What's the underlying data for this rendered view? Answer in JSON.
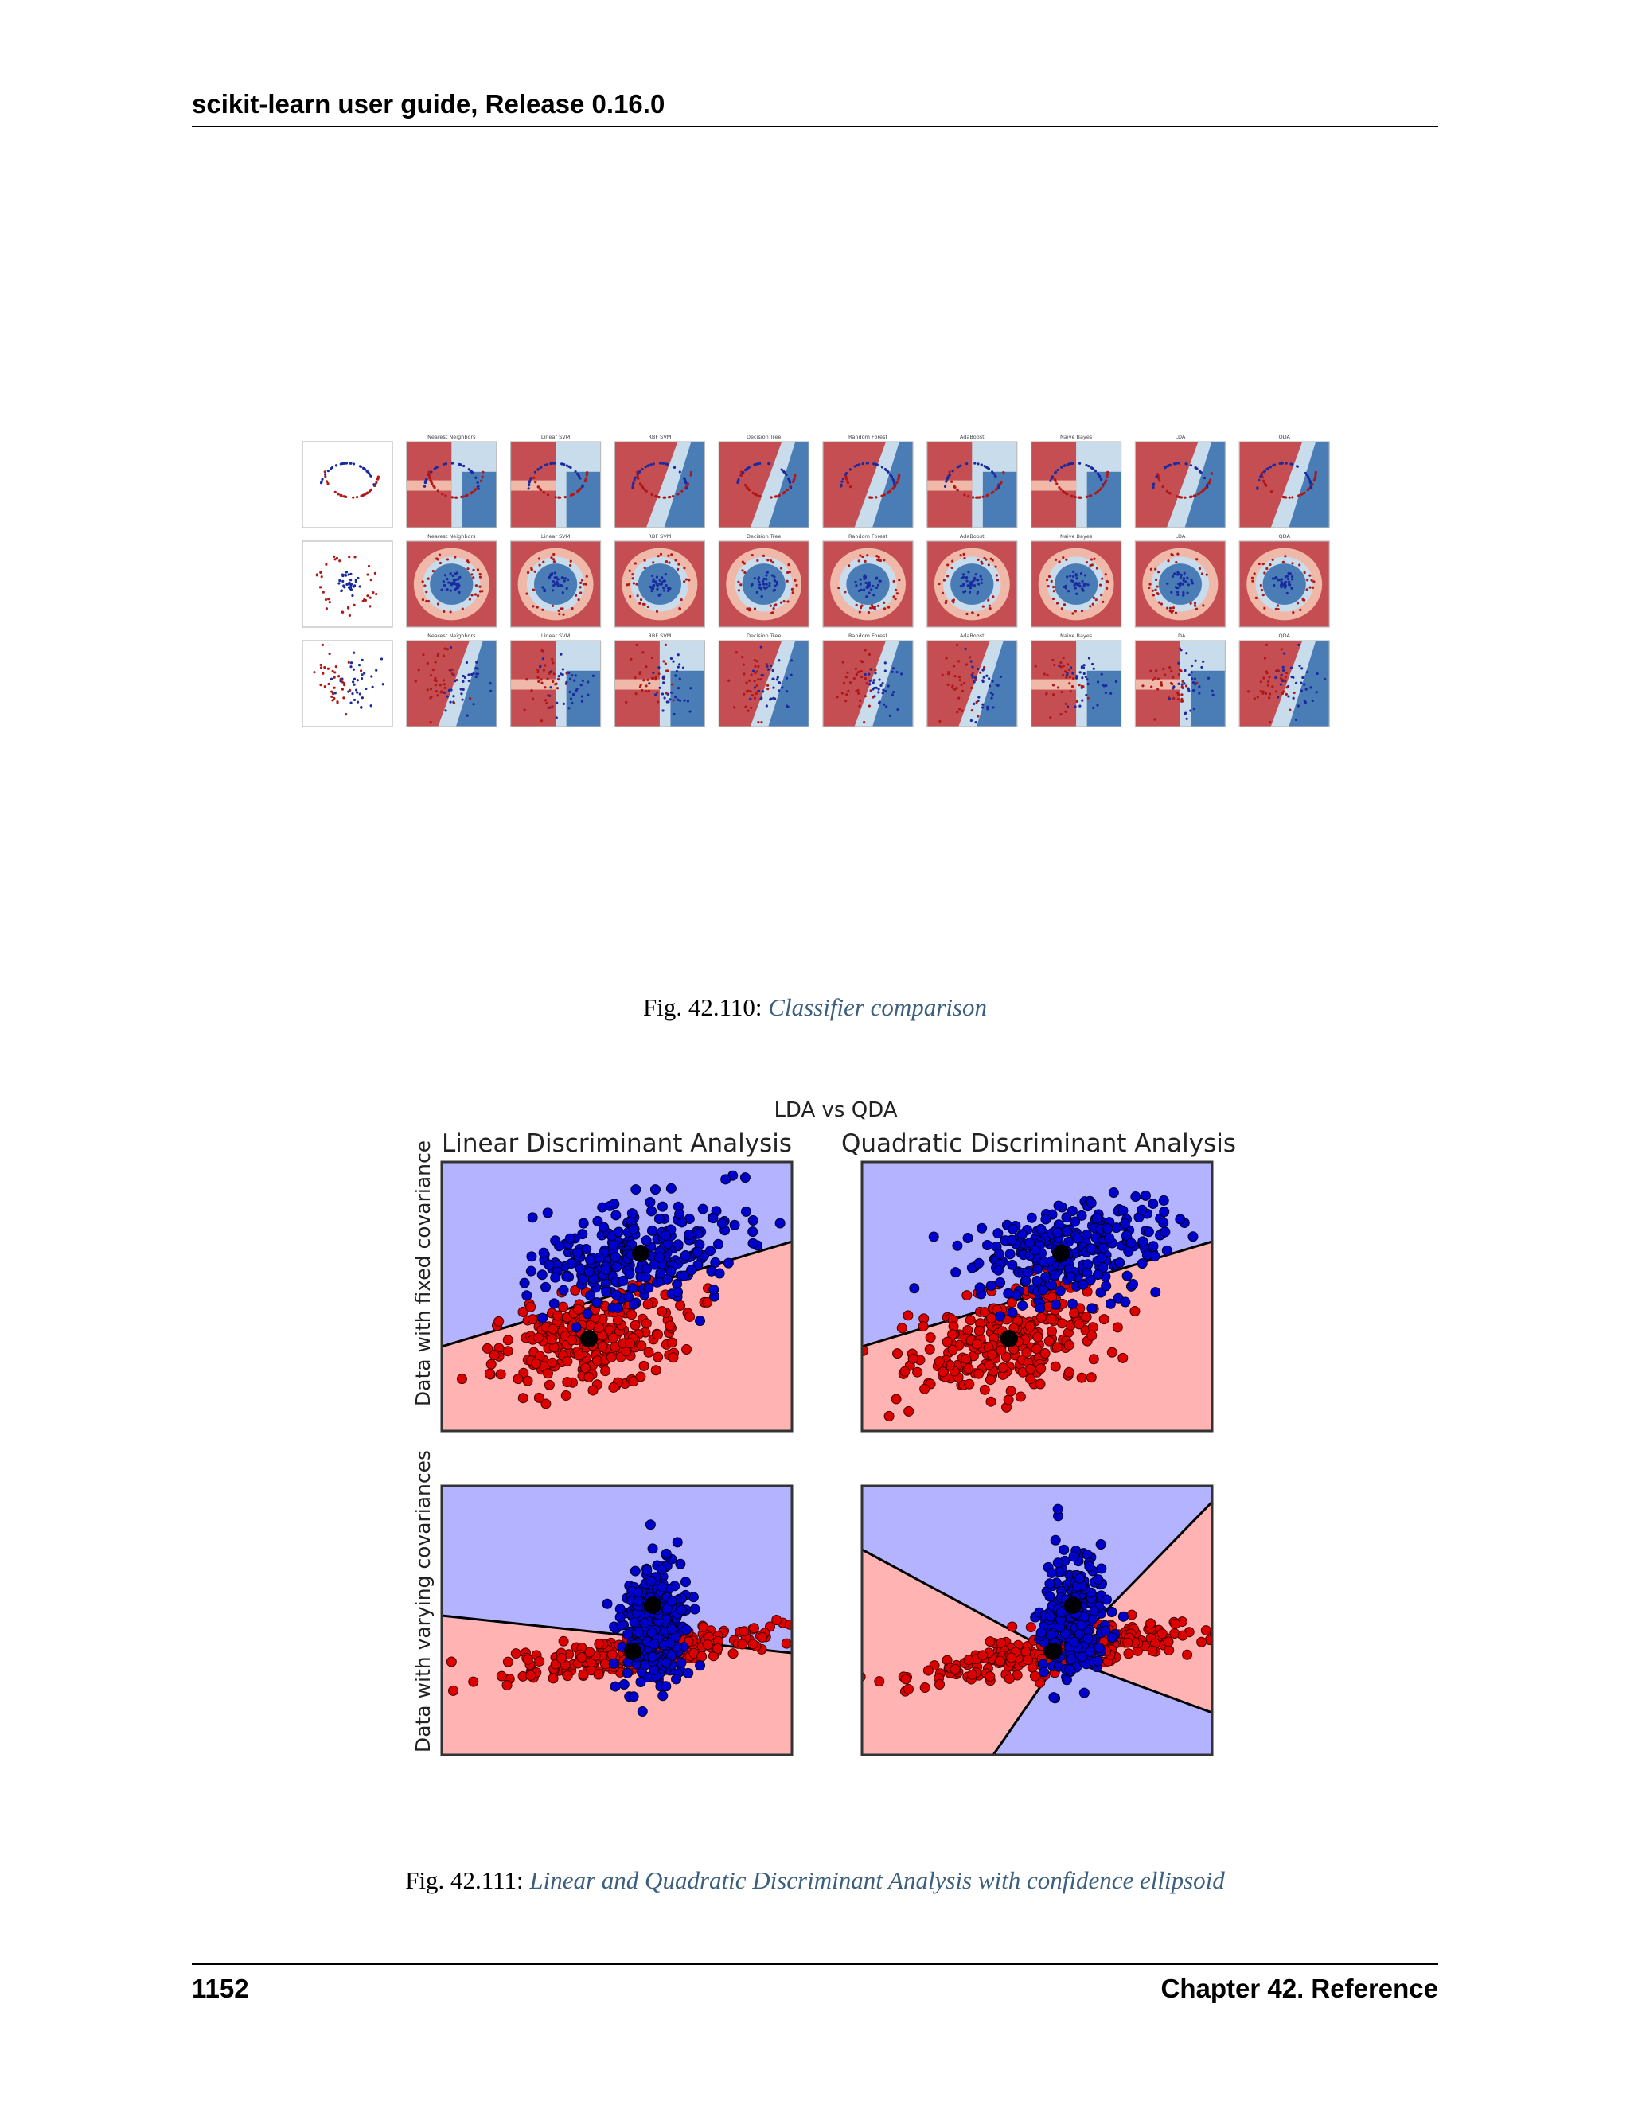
{
  "header": {
    "title": "scikit-learn user guide, Release 0.16.0"
  },
  "figure1": {
    "caption_prefix": "Fig.  42.110: ",
    "caption_link": "Classifier comparison",
    "column_titles": [
      "",
      "Nearest Neighbors",
      "Linear SVM",
      "RBF SVM",
      "Decision Tree",
      "Random Forest",
      "AdaBoost",
      "Naive Bayes",
      "LDA",
      "QDA"
    ],
    "colors": {
      "red": "#c44e52",
      "blue": "#4a7db5",
      "lightred": "#f0b8a8",
      "lightblue": "#c8dcec"
    }
  },
  "figure2": {
    "caption_prefix": "Fig.  42.111: ",
    "caption_link": "Linear and Quadratic Discriminant Analysis with confidence ellipsoid",
    "suptitle": "LDA vs QDA",
    "col_titles": [
      "Linear Discriminant Analysis",
      "Quadratic Discriminant Analysis"
    ],
    "row_labels": [
      "Data with fixed covariance",
      "Data with varying covariances"
    ],
    "colors": {
      "bg_blue": "#b3b3ff",
      "bg_red": "#ffb3b3",
      "points_blue": "#0000cc",
      "points_red": "#dd0000"
    }
  },
  "footer": {
    "page_number": "1152",
    "chapter": "Chapter 42.  Reference"
  }
}
